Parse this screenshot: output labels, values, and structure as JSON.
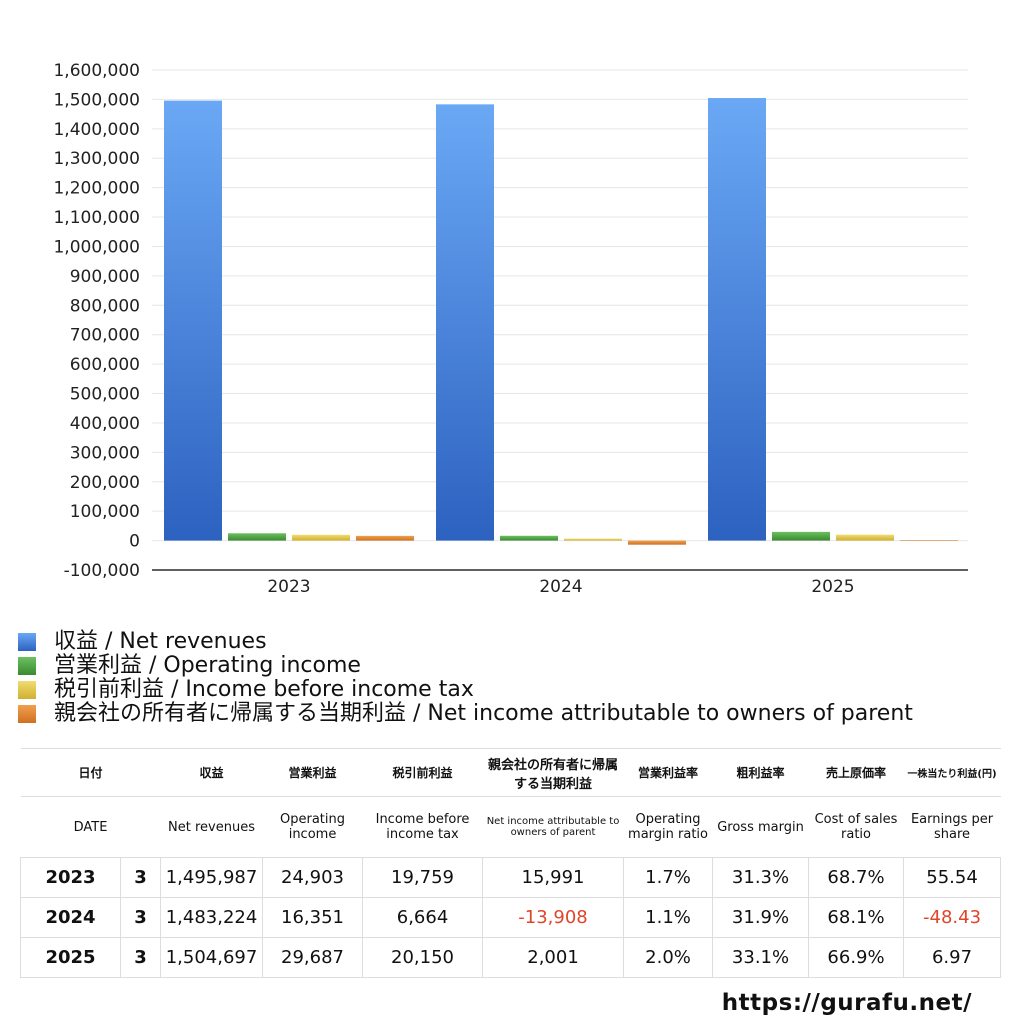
{
  "chart_data": {
    "type": "bar",
    "categories": [
      "2023",
      "2024",
      "2025"
    ],
    "ylim": [
      -100000,
      1600000
    ],
    "yticks": [
      "1,600,000",
      "1,500,000",
      "1,400,000",
      "1,300,000",
      "1,200,000",
      "1,100,000",
      "1,000,000",
      "900,000",
      "800,000",
      "700,000",
      "600,000",
      "500,000",
      "400,000",
      "300,000",
      "200,000",
      "100,000",
      "0",
      "-100,000"
    ],
    "grid": true,
    "legend_position": "bottom",
    "series": [
      {
        "name": "収益 / Net revenues",
        "color": "#3d7ee0",
        "values": [
          1495987,
          1483224,
          1504697
        ]
      },
      {
        "name": "営業利益 / Operating income",
        "color": "#4ea043",
        "values": [
          24903,
          16351,
          29687
        ]
      },
      {
        "name": "税引前利益 / Income before income tax",
        "color": "#e0c040",
        "values": [
          19759,
          6664,
          20150
        ]
      },
      {
        "name": "親会社の所有者に帰属する当期利益 / Net income attributable to owners of parent",
        "color": "#e08030",
        "values": [
          15991,
          -13908,
          2001
        ]
      }
    ]
  },
  "table": {
    "header_ja": [
      "日付",
      "収益",
      "営業利益",
      "税引前利益",
      "親会社の所有者に帰属する当期利益",
      "営業利益率",
      "粗利益率",
      "売上原価率",
      "一株当たり利益(円)"
    ],
    "header_en": [
      "DATE",
      "Net revenues",
      "Operating income",
      "Income before income tax",
      "Net income attributable to owners of parent",
      "Operating margin ratio",
      "Gross margin",
      "Cost of sales ratio",
      "Earnings per share"
    ],
    "rows": [
      {
        "year": "2023",
        "month": "3",
        "cells": [
          "1,495,987",
          "24,903",
          "19,759",
          "15,991",
          "1.7%",
          "31.3%",
          "68.7%",
          "55.54"
        ]
      },
      {
        "year": "2024",
        "month": "3",
        "cells": [
          "1,483,224",
          "16,351",
          "6,664",
          "-13,908",
          "1.1%",
          "31.9%",
          "68.1%",
          "-48.43"
        ]
      },
      {
        "year": "2025",
        "month": "3",
        "cells": [
          "1,504,697",
          "29,687",
          "20,150",
          "2,001",
          "2.0%",
          "33.1%",
          "66.9%",
          "6.97"
        ]
      }
    ]
  },
  "negative_color": "#e0452b",
  "footer_url": "https://gurafu.net/"
}
